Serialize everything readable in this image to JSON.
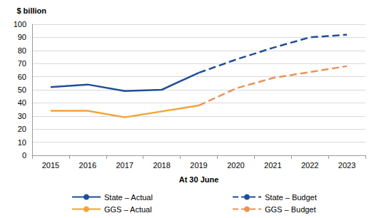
{
  "chart_data": {
    "type": "line",
    "y_label": "$ billion",
    "x_label": "At 30 June",
    "categories": [
      "2015",
      "2016",
      "2017",
      "2018",
      "2019",
      "2020",
      "2021",
      "2022",
      "2023"
    ],
    "series": [
      {
        "name": "State – Actual",
        "color": "#1f4e99",
        "line_style": "solid",
        "values": [
          52,
          54,
          49,
          50,
          63,
          null,
          null,
          null,
          null
        ]
      },
      {
        "name": "State – Budget",
        "color": "#1f4e99",
        "line_style": "dashed",
        "values": [
          null,
          null,
          null,
          null,
          63,
          73,
          82,
          90,
          92
        ]
      },
      {
        "name": "GGS – Actual",
        "color": "#f2a33a",
        "line_style": "solid",
        "values": [
          34,
          34,
          29,
          33.5,
          38,
          null,
          null,
          null,
          null
        ]
      },
      {
        "name": "GGS – Budget",
        "color": "#e8935a",
        "line_style": "dashed",
        "values": [
          null,
          null,
          null,
          null,
          38,
          51,
          59,
          63.5,
          68
        ]
      }
    ],
    "ylim": [
      0,
      100
    ],
    "yticks": [
      0,
      10,
      20,
      30,
      40,
      50,
      60,
      70,
      80,
      90,
      100
    ],
    "grid": true,
    "legend": "bottom"
  }
}
